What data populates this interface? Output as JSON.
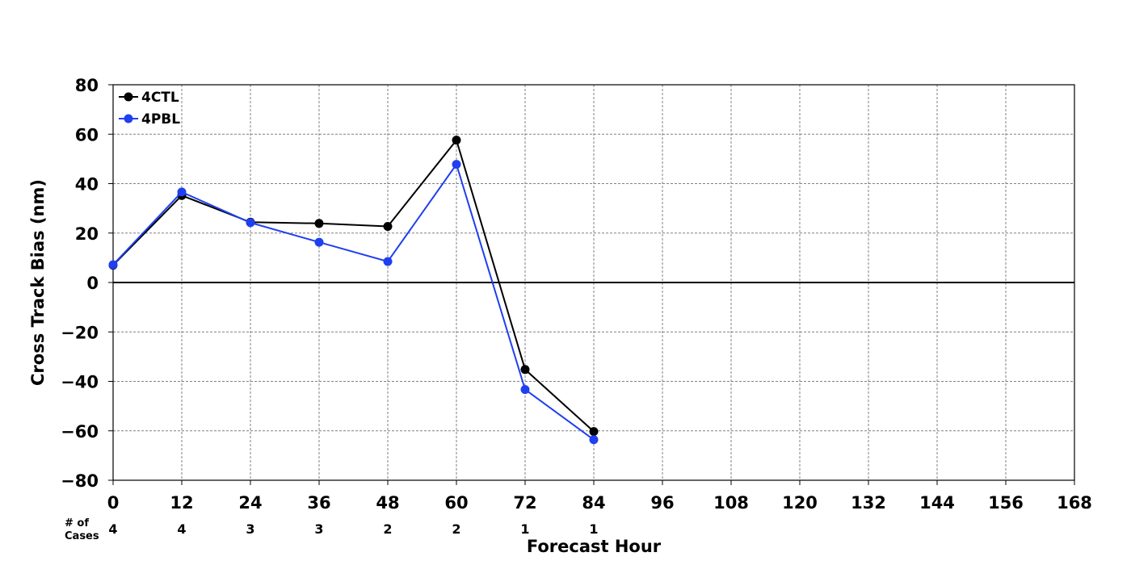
{
  "chart_data": {
    "type": "line",
    "title": "",
    "xlabel": "Forecast Hour",
    "ylabel": "Cross Track Bias (nm)",
    "xlim": [
      0,
      168
    ],
    "ylim": [
      -80,
      80
    ],
    "x_ticks": [
      "0",
      "12",
      "24",
      "36",
      "48",
      "60",
      "72",
      "84",
      "96",
      "108",
      "120",
      "132",
      "144",
      "156",
      "168"
    ],
    "y_ticks": [
      "80",
      "60",
      "40",
      "20",
      "0",
      "−20",
      "−40",
      "−60",
      "−80"
    ],
    "grid": true,
    "legend_position": "top-left",
    "series": [
      {
        "name": "4CTL",
        "color": "#000000",
        "x": [
          0,
          12,
          24,
          36,
          48,
          60,
          72,
          84
        ],
        "y": [
          7.0,
          35.2,
          24.4,
          23.9,
          22.7,
          57.6,
          -35.2,
          -60.3
        ]
      },
      {
        "name": "4PBL",
        "color": "#1f3ff0",
        "x": [
          0,
          12,
          24,
          36,
          48,
          60,
          72,
          84
        ],
        "y": [
          7.2,
          36.6,
          24.2,
          16.3,
          8.5,
          47.8,
          -43.3,
          -63.6
        ]
      }
    ],
    "cases": {
      "label_line1": "# of",
      "label_line2": "Cases",
      "x": [
        0,
        12,
        24,
        36,
        48,
        60,
        72,
        84
      ],
      "counts": [
        "4",
        "4",
        "3",
        "3",
        "2",
        "2",
        "1",
        "1"
      ]
    }
  }
}
